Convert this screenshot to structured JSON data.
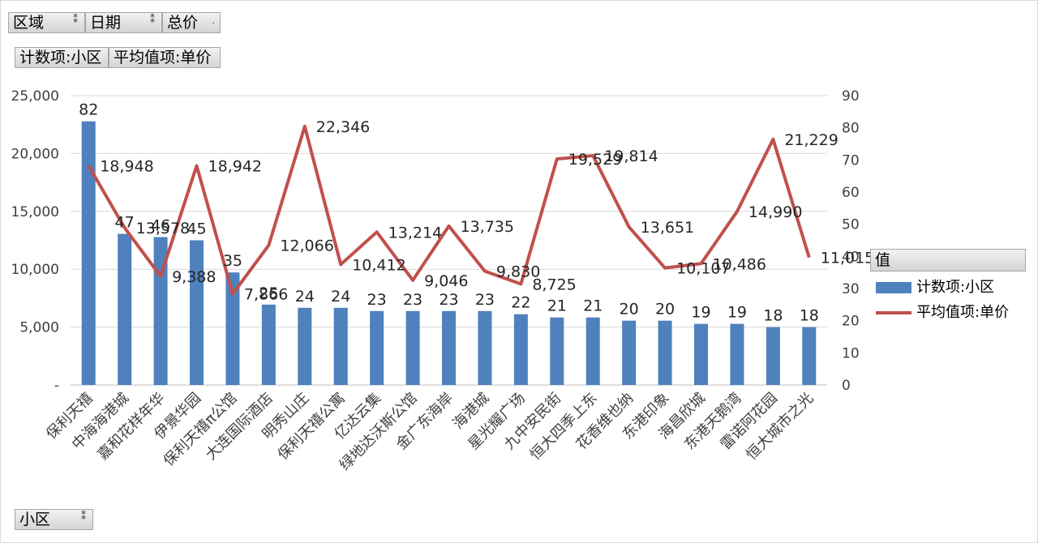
{
  "filters": {
    "region": "区域",
    "date": "日期",
    "total_price": "总价"
  },
  "values_fields": {
    "count": "计数项:小区",
    "avg": "平均值项:单价"
  },
  "axis_field": "小区",
  "legend": {
    "title": "值",
    "count_label": "计数项:小区",
    "avg_label": "平均值项:单价"
  },
  "colors": {
    "bar": "#4f81bd",
    "line": "#c0504d",
    "grid": "#d9d9d9"
  },
  "chart_data": {
    "type": "bar",
    "categories": [
      "保利天禧",
      "中海海港城",
      "嘉和花样年华",
      "伊景华园",
      "保利天禧π公馆",
      "大连国际酒店",
      "明秀山庄",
      "保利天禧公寓",
      "亿达云集",
      "绿地达沃斯公馆",
      "金广东海岸",
      "海港城",
      "星光耀广场",
      "九中安民街",
      "恒大四季上东",
      "花香维也纳",
      "东港印象",
      "海昌欣城",
      "东港天鹅湾",
      "雷诺阿花园",
      "恒大城市之光"
    ],
    "series": [
      {
        "name": "计数项:小区",
        "type": "bar",
        "axis": "right",
        "values": [
          82,
          47,
          46,
          45,
          35,
          25,
          24,
          24,
          23,
          23,
          23,
          23,
          22,
          21,
          21,
          20,
          20,
          19,
          19,
          18,
          18
        ]
      },
      {
        "name": "平均值项:单价",
        "type": "line",
        "axis": "left",
        "values": [
          18948,
          13578,
          9388,
          18942,
          7866,
          12066,
          22346,
          10412,
          13214,
          9046,
          13735,
          9830,
          8725,
          19529,
          19814,
          13651,
          10107,
          10486,
          14990,
          21229,
          11015
        ]
      }
    ],
    "bar_labels": [
      "82",
      "47",
      "46",
      "45",
      "35",
      "25",
      "24",
      "24",
      "23",
      "23",
      "23",
      "23",
      "22",
      "21",
      "21",
      "20",
      "20",
      "19",
      "19",
      "18",
      "18"
    ],
    "line_labels": [
      "18,948",
      "13,578",
      "9,388",
      "18,942",
      "7,866",
      "12,066",
      "22,346",
      "10,412",
      "13,214",
      "9,046",
      "13,735",
      "9,830",
      "8,725",
      "19,529",
      "19,814",
      "13,651",
      "10,107",
      "10,486",
      "14,990",
      "21,229",
      "11,015"
    ],
    "left_axis": {
      "ticks": [
        "-",
        "5,000",
        "10,000",
        "15,000",
        "20,000",
        "25,000"
      ],
      "range": [
        0,
        25000
      ]
    },
    "right_axis": {
      "ticks": [
        "0",
        "10",
        "20",
        "30",
        "40",
        "50",
        "60",
        "70",
        "80",
        "90"
      ],
      "range": [
        0,
        90
      ]
    },
    "grid": true,
    "legend_position": "right"
  }
}
